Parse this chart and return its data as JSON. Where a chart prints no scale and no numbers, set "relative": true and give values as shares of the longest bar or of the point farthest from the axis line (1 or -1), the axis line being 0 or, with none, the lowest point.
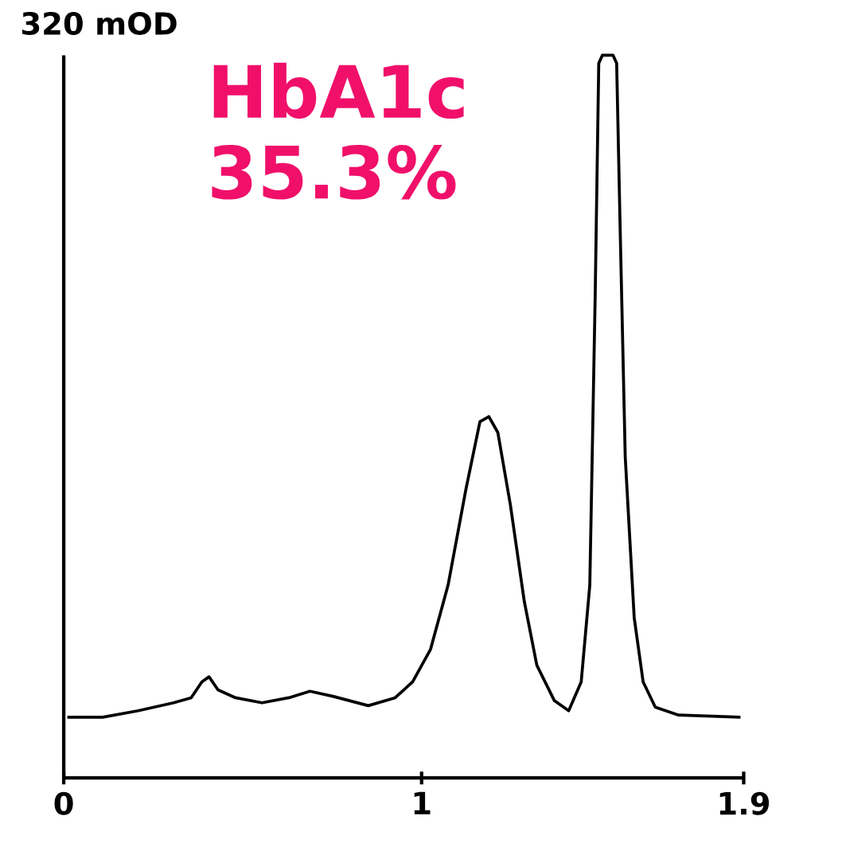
{
  "chart_data": {
    "type": "line",
    "relative": true,
    "ylabel": "320 mOD",
    "annotations": [
      "HbA1c 35.3%"
    ],
    "xlim": [
      0,
      1.9
    ],
    "xticks": [
      0,
      1,
      1.9
    ],
    "grid": false,
    "marker": "none",
    "line_style": "solid",
    "series": [
      {
        "color": "#000000",
        "x": [
          0.01,
          0.109,
          0.208,
          0.307,
          0.356,
          0.386,
          0.406,
          0.431,
          0.48,
          0.554,
          0.629,
          0.688,
          0.752,
          0.851,
          0.926,
          0.975,
          1.025,
          1.074,
          1.124,
          1.163,
          1.188,
          1.213,
          1.248,
          1.287,
          1.322,
          1.371,
          1.411,
          1.446,
          1.47,
          1.485,
          1.495,
          1.505,
          1.535,
          1.545,
          1.554,
          1.569,
          1.594,
          1.619,
          1.653,
          1.718,
          1.891
        ],
        "values": [
          0.084,
          0.084,
          0.093,
          0.104,
          0.111,
          0.133,
          0.14,
          0.122,
          0.111,
          0.104,
          0.111,
          0.12,
          0.113,
          0.1,
          0.111,
          0.133,
          0.178,
          0.267,
          0.4,
          0.493,
          0.5,
          0.478,
          0.378,
          0.244,
          0.156,
          0.107,
          0.093,
          0.133,
          0.267,
          0.667,
          0.989,
          1,
          1,
          0.989,
          0.778,
          0.444,
          0.222,
          0.133,
          0.098,
          0.087,
          0.084
        ]
      }
    ]
  }
}
